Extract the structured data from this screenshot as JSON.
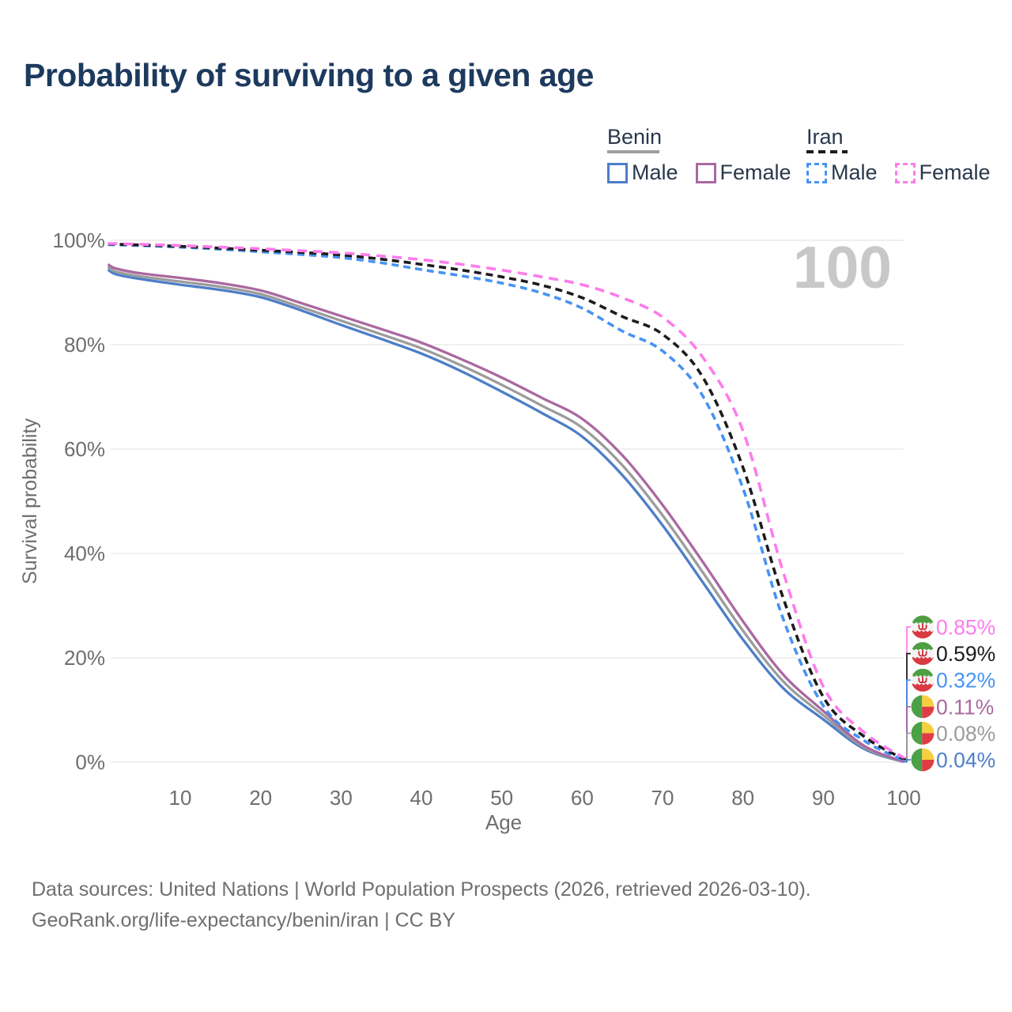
{
  "header": {
    "title": "Probability of surviving to a given age"
  },
  "legend": {
    "groups": [
      {
        "label": "Benin",
        "underline_style": "solid",
        "underline_color": "#a0a0a0",
        "items": [
          {
            "label": "Male",
            "color": "#4d7ec8",
            "dash": "solid"
          },
          {
            "label": "Female",
            "color": "#aa68a0",
            "dash": "solid"
          }
        ]
      },
      {
        "label": "Iran",
        "underline_style": "dashed",
        "underline_color": "#1c1c1c",
        "items": [
          {
            "label": "Male",
            "color": "#4793f2",
            "dash": "dashed"
          },
          {
            "label": "Female",
            "color": "#fd7cec",
            "dash": "dashed"
          }
        ]
      }
    ]
  },
  "chart_data": {
    "type": "line",
    "title": "Probability of surviving to a given age",
    "xlabel": "Age",
    "ylabel": "Survival probability",
    "xlim": [
      1,
      100
    ],
    "ylim": [
      0,
      100
    ],
    "x_ticks": [
      10,
      20,
      30,
      40,
      50,
      60,
      70,
      80,
      90,
      100
    ],
    "y_ticks": [
      "0%",
      "20%",
      "40%",
      "60%",
      "80%",
      "100%"
    ],
    "grid": "horizontal",
    "watermark": "100",
    "legend_position": "top-right",
    "series": [
      {
        "name": "Iran Female",
        "country": "Iran",
        "sex": "Female",
        "flag": "iran",
        "color": "#fd7cec",
        "dash": "12 8",
        "end_label": "0.85%",
        "points": [
          [
            1,
            99.4
          ],
          [
            5,
            99.25
          ],
          [
            10,
            99.0
          ],
          [
            15,
            98.7
          ],
          [
            20,
            98.4
          ],
          [
            25,
            98.0
          ],
          [
            30,
            97.6
          ],
          [
            35,
            97.0
          ],
          [
            40,
            96.3
          ],
          [
            45,
            95.4
          ],
          [
            50,
            94.3
          ],
          [
            55,
            93.0
          ],
          [
            60,
            91.5
          ],
          [
            65,
            89.0
          ],
          [
            70,
            85.3
          ],
          [
            75,
            77.6
          ],
          [
            80,
            63.5
          ],
          [
            85,
            36.5
          ],
          [
            90,
            14.5
          ],
          [
            95,
            5.8
          ],
          [
            100,
            0.85
          ]
        ]
      },
      {
        "name": "Iran Both sexes",
        "country": "Iran",
        "sex": "Both",
        "flag": "iran",
        "color": "#1c1c1c",
        "dash": "9 6",
        "end_label": "0.59%",
        "points": [
          [
            1,
            99.3
          ],
          [
            5,
            99.1
          ],
          [
            10,
            98.85
          ],
          [
            15,
            98.5
          ],
          [
            20,
            98.1
          ],
          [
            25,
            97.7
          ],
          [
            30,
            97.2
          ],
          [
            35,
            96.4
          ],
          [
            40,
            95.4
          ],
          [
            45,
            94.3
          ],
          [
            50,
            93.0
          ],
          [
            55,
            91.4
          ],
          [
            60,
            89.0
          ],
          [
            65,
            85.4
          ],
          [
            70,
            82.0
          ],
          [
            75,
            73.8
          ],
          [
            80,
            56.5
          ],
          [
            85,
            31.5
          ],
          [
            90,
            12.5
          ],
          [
            95,
            5.0
          ],
          [
            100,
            0.59
          ]
        ]
      },
      {
        "name": "Iran Male",
        "country": "Iran",
        "sex": "Male",
        "flag": "iran",
        "color": "#4793f2",
        "dash": "9 6",
        "end_label": "0.32%",
        "points": [
          [
            1,
            99.2
          ],
          [
            5,
            99.0
          ],
          [
            10,
            98.7
          ],
          [
            15,
            98.3
          ],
          [
            20,
            97.8
          ],
          [
            25,
            97.3
          ],
          [
            30,
            96.7
          ],
          [
            35,
            95.7
          ],
          [
            40,
            94.4
          ],
          [
            45,
            93.2
          ],
          [
            50,
            91.8
          ],
          [
            55,
            89.9
          ],
          [
            60,
            87.0
          ],
          [
            65,
            82.6
          ],
          [
            70,
            78.8
          ],
          [
            75,
            70.2
          ],
          [
            80,
            52.5
          ],
          [
            85,
            27.5
          ],
          [
            90,
            10.8
          ],
          [
            95,
            4.2
          ],
          [
            100,
            0.32
          ]
        ]
      },
      {
        "name": "Benin Female",
        "country": "Benin",
        "sex": "Female",
        "flag": "benin",
        "color": "#aa68a0",
        "dash": "solid",
        "end_label": "0.11%",
        "points": [
          [
            1,
            95.4
          ],
          [
            2,
            94.6
          ],
          [
            5,
            93.7
          ],
          [
            10,
            92.8
          ],
          [
            15,
            91.8
          ],
          [
            20,
            90.4
          ],
          [
            25,
            88.0
          ],
          [
            30,
            85.5
          ],
          [
            35,
            83.0
          ],
          [
            40,
            80.4
          ],
          [
            45,
            77.2
          ],
          [
            50,
            73.7
          ],
          [
            55,
            69.8
          ],
          [
            60,
            65.8
          ],
          [
            65,
            58.8
          ],
          [
            70,
            49.3
          ],
          [
            75,
            38.4
          ],
          [
            80,
            27.0
          ],
          [
            85,
            16.8
          ],
          [
            90,
            9.8
          ],
          [
            95,
            3.2
          ],
          [
            100,
            0.11
          ]
        ]
      },
      {
        "name": "Benin Both sexes",
        "country": "Benin",
        "sex": "Both",
        "flag": "benin",
        "color": "#9c9c9c",
        "dash": "solid",
        "end_label": "0.08%",
        "points": [
          [
            1,
            94.9
          ],
          [
            2,
            94.0
          ],
          [
            5,
            93.1
          ],
          [
            10,
            92.1
          ],
          [
            15,
            91.1
          ],
          [
            20,
            89.7
          ],
          [
            25,
            87.2
          ],
          [
            30,
            84.6
          ],
          [
            35,
            82.0
          ],
          [
            40,
            79.3
          ],
          [
            45,
            76.0
          ],
          [
            50,
            72.3
          ],
          [
            55,
            68.3
          ],
          [
            60,
            64.1
          ],
          [
            65,
            56.9
          ],
          [
            70,
            47.3
          ],
          [
            75,
            36.4
          ],
          [
            80,
            25.2
          ],
          [
            85,
            15.5
          ],
          [
            90,
            9.0
          ],
          [
            95,
            2.9
          ],
          [
            100,
            0.08
          ]
        ]
      },
      {
        "name": "Benin Male",
        "country": "Benin",
        "sex": "Male",
        "flag": "benin",
        "color": "#4d7ec8",
        "dash": "solid",
        "end_label": "0.04%",
        "points": [
          [
            1,
            94.4
          ],
          [
            2,
            93.5
          ],
          [
            5,
            92.6
          ],
          [
            10,
            91.5
          ],
          [
            15,
            90.5
          ],
          [
            20,
            89.1
          ],
          [
            25,
            86.6
          ],
          [
            30,
            83.8
          ],
          [
            35,
            81.1
          ],
          [
            40,
            78.3
          ],
          [
            45,
            74.9
          ],
          [
            50,
            71.0
          ],
          [
            55,
            66.9
          ],
          [
            60,
            62.4
          ],
          [
            65,
            55.0
          ],
          [
            70,
            45.4
          ],
          [
            75,
            34.5
          ],
          [
            80,
            23.5
          ],
          [
            85,
            14.2
          ],
          [
            90,
            8.2
          ],
          [
            95,
            2.6
          ],
          [
            100,
            0.04
          ]
        ]
      }
    ],
    "flag_colors": {
      "iran": {
        "green": "#4f9e43",
        "white": "#f4f4f4",
        "red": "#d93a41",
        "emblem": "#cc2b35"
      },
      "benin": {
        "green": "#4ba146",
        "yellow": "#f6cf3f",
        "red": "#e03c45"
      }
    },
    "colors": {
      "grid": "#ebebeb",
      "axis_text": "#6e6e6e",
      "watermark": "#c8c8c8"
    }
  },
  "footer": {
    "line1": "Data sources: United Nations | World Population Prospects (2026, retrieved 2026-03-10).",
    "line2": "GeoRank.org/life-expectancy/benin/iran | CC BY"
  }
}
